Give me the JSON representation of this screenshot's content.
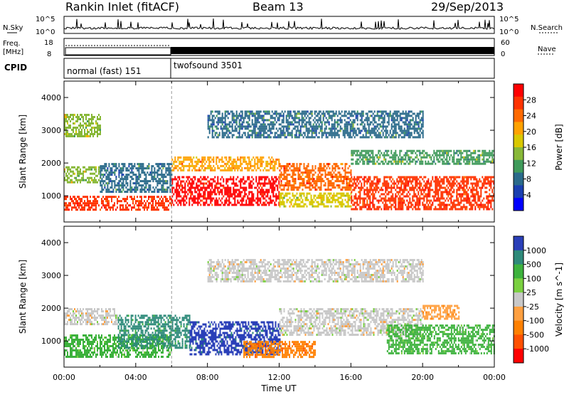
{
  "header": {
    "station": "Rankin Inlet (fitACF)",
    "beam": "Beam 13",
    "date": "29/Sep/2013"
  },
  "strip_labels": {
    "nsky": "N.Sky",
    "nsearch": "N.Search",
    "freq_line1": "Freq.",
    "freq_line2": "[MHz]",
    "nave": "Nave",
    "cpid": "CPID"
  },
  "strip_ticks": {
    "nsky_top": "10^5",
    "nsky_bottom": "10^0",
    "nsearch_top": "10^5",
    "nsearch_bottom": "10^0",
    "freq_top": "18",
    "freq_bottom": "8",
    "nave_top": "60",
    "nave_bottom": "0"
  },
  "cpid": {
    "modes": [
      {
        "label": "normal (fast) 151",
        "start_hour": 0,
        "end_hour": 6
      },
      {
        "label": "twofsound 3501",
        "start_hour": 6,
        "end_hour": 24
      }
    ]
  },
  "colorbars": {
    "power": {
      "label": "Power [dB]",
      "ticks": [
        "28",
        "24",
        "20",
        "16",
        "12",
        "8",
        "4"
      ],
      "colors": [
        "#ff0000",
        "#ff3300",
        "#ff6a00",
        "#ffa200",
        "#d9c800",
        "#88b838",
        "#3f9a5a",
        "#2a6a8a",
        "#1a3fb0",
        "#0000ff"
      ]
    },
    "velocity": {
      "label": "Velocity [m s^-1]",
      "ticks": [
        "1000",
        "500",
        "100",
        "25",
        "-25",
        "-100",
        "-500",
        "-1000"
      ],
      "colors": [
        "#2a3fb8",
        "#2e8a7a",
        "#3db23d",
        "#7ad040",
        "#c8c8c8",
        "#ffa040",
        "#ff8000",
        "#ff5000",
        "#ff0000"
      ]
    }
  },
  "chart_data": [
    {
      "type": "heatmap",
      "name": "power",
      "xlabel": "Time UT",
      "ylabel": "Slant Range [km]",
      "xlim": [
        0,
        24
      ],
      "ylim": [
        200,
        4500
      ],
      "x_ticks": [
        "00:00",
        "04:00",
        "08:00",
        "12:00",
        "16:00",
        "20:00",
        "00:00"
      ],
      "y_ticks": [
        1000,
        2000,
        3000,
        4000
      ],
      "bands": [
        {
          "t0": 0.0,
          "t1": 6.0,
          "r0": 600,
          "r1": 1000,
          "value": 26
        },
        {
          "t0": 0.0,
          "t1": 2.0,
          "r0": 1400,
          "r1": 1900,
          "value": 14
        },
        {
          "t0": 2.0,
          "t1": 6.0,
          "r0": 1100,
          "r1": 2000,
          "value": 8
        },
        {
          "t0": 0.0,
          "t1": 2.0,
          "r0": 2800,
          "r1": 3500,
          "value": 14
        },
        {
          "t0": 6.0,
          "t1": 12.0,
          "r0": 700,
          "r1": 1600,
          "value": 28
        },
        {
          "t0": 6.0,
          "t1": 12.0,
          "r0": 1800,
          "r1": 2200,
          "value": 20
        },
        {
          "t0": 12.0,
          "t1": 16.0,
          "r0": 1200,
          "r1": 2000,
          "value": 24
        },
        {
          "t0": 12.0,
          "t1": 16.0,
          "r0": 700,
          "r1": 1100,
          "value": 16
        },
        {
          "t0": 16.0,
          "t1": 24.0,
          "r0": 600,
          "r1": 1600,
          "value": 26
        },
        {
          "t0": 16.0,
          "t1": 24.0,
          "r0": 2000,
          "r1": 2400,
          "value": 12
        },
        {
          "t0": 8.0,
          "t1": 20.0,
          "r0": 2800,
          "r1": 3600,
          "value": 8
        }
      ]
    },
    {
      "type": "heatmap",
      "name": "velocity",
      "xlabel": "Time UT",
      "ylabel": "Slant Range [km]",
      "xlim": [
        0,
        24
      ],
      "ylim": [
        200,
        4500
      ],
      "x_ticks": [
        "00:00",
        "04:00",
        "08:00",
        "12:00",
        "16:00",
        "20:00",
        "00:00"
      ],
      "y_ticks": [
        1000,
        2000,
        3000,
        4000
      ],
      "bands": [
        {
          "t0": 0.0,
          "t1": 6.0,
          "r0": 500,
          "r1": 1200,
          "value": 100
        },
        {
          "t0": 0.0,
          "t1": 3.0,
          "r0": 1500,
          "r1": 2000,
          "value": 0
        },
        {
          "t0": 3.0,
          "t1": 7.0,
          "r0": 800,
          "r1": 1800,
          "value": 500
        },
        {
          "t0": 7.0,
          "t1": 12.0,
          "r0": 600,
          "r1": 1600,
          "value": 1000
        },
        {
          "t0": 10.0,
          "t1": 14.0,
          "r0": 500,
          "r1": 1000,
          "value": -500
        },
        {
          "t0": 12.0,
          "t1": 20.0,
          "r0": 1200,
          "r1": 2000,
          "value": 0
        },
        {
          "t0": 18.0,
          "t1": 24.0,
          "r0": 600,
          "r1": 1500,
          "value": 100
        },
        {
          "t0": 20.0,
          "t1": 22.0,
          "r0": 1700,
          "r1": 2100,
          "value": -100
        },
        {
          "t0": 8.0,
          "t1": 20.0,
          "r0": 2800,
          "r1": 3500,
          "value": 0
        }
      ]
    }
  ]
}
